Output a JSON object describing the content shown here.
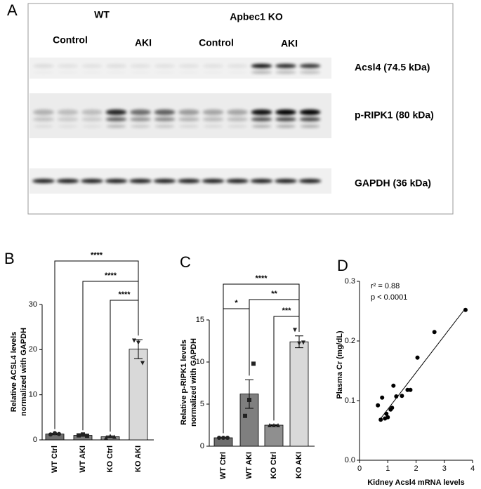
{
  "panels": [
    "A",
    "B",
    "C",
    "D"
  ],
  "blot": {
    "groups": [
      "WT",
      "Apbec1 KO"
    ],
    "conditions": [
      "Control",
      "AKI",
      "Control",
      "AKI"
    ],
    "bands": [
      "Acsl4 (74.5 kDa)",
      "p-RIPK1 (80 kDa)",
      "GAPDH (36 kDa)"
    ]
  },
  "chart_data": [
    {
      "type": "bar",
      "ylabel": [
        "Relative ACSL4 levels",
        "normalized with GAPDH"
      ],
      "categories": [
        "WT Ctrl",
        "WT AKI",
        "KO Ctrl",
        "KO AKI"
      ],
      "values": [
        1.3,
        1.0,
        0.7,
        20.1
      ],
      "errors": [
        0.15,
        0.2,
        0.2,
        2.1
      ],
      "points": [
        [
          1.2,
          1.5,
          1.3
        ],
        [
          1.0,
          1.2,
          0.9
        ],
        [
          0.5,
          0.9,
          0.7
        ],
        [
          22,
          21.5,
          17
        ]
      ],
      "colors": [
        "#6e6e6e",
        "#7f7f7f",
        "#8f8f8f",
        "#d9d9d9"
      ],
      "ylim": [
        0,
        30
      ],
      "yticks": [
        0,
        10,
        20,
        30
      ],
      "annotations": [
        "****",
        "****",
        "****"
      ]
    },
    {
      "type": "bar",
      "ylabel": [
        "Relative p-RIPK1 levels",
        "normalized with GAPDH"
      ],
      "categories": [
        "WT Ctrl",
        "WT AKI",
        "KO Ctrl",
        "KO AKI"
      ],
      "values": [
        1.0,
        6.2,
        2.5,
        12.4
      ],
      "errors": [
        0.05,
        1.7,
        0.05,
        0.7
      ],
      "points": [
        [
          1,
          1,
          1
        ],
        [
          3.6,
          5.5,
          9.8
        ],
        [
          2.5,
          2.5,
          2.5
        ],
        [
          13.8,
          12.2,
          12.3
        ]
      ],
      "colors": [
        "#6e6e6e",
        "#7f7f7f",
        "#8f8f8f",
        "#d9d9d9"
      ],
      "ylim": [
        0,
        15
      ],
      "yticks": [
        0,
        5,
        10,
        15
      ],
      "annotations": [
        "****",
        "*",
        "**",
        "***"
      ]
    },
    {
      "type": "scatter",
      "xlabel": "Kidney Acsl4 mRNA levels",
      "ylabel": "Plasma Cr (mg/dL)",
      "x": [
        0.65,
        0.75,
        0.8,
        0.9,
        0.95,
        1.0,
        1.1,
        1.15,
        1.2,
        1.3,
        1.5,
        1.7,
        1.8,
        2.05,
        2.65,
        3.75
      ],
      "y": [
        0.092,
        0.068,
        0.105,
        0.07,
        0.078,
        0.072,
        0.085,
        0.088,
        0.125,
        0.107,
        0.108,
        0.118,
        0.118,
        0.172,
        0.215,
        0.252
      ],
      "fit_line": {
        "x": [
          0.7,
          3.75
        ],
        "y": [
          0.067,
          0.255
        ]
      },
      "xlim": [
        0,
        4
      ],
      "xticks": [
        0,
        1,
        2,
        3,
        4
      ],
      "ylim": [
        0,
        0.3
      ],
      "yticks": [
        {
          "value": 0,
          "label": "0.0"
        },
        0.1,
        0.2,
        0.3
      ],
      "annotations": [
        "r² = 0.88",
        "p < 0.0001"
      ]
    }
  ]
}
